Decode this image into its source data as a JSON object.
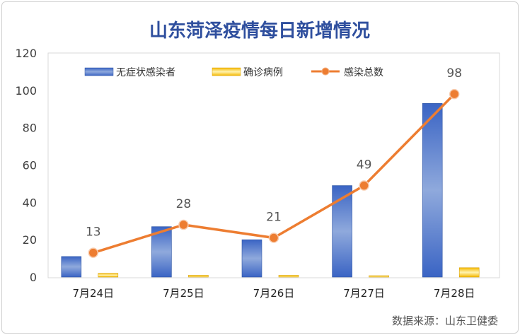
{
  "chart_data": {
    "type": "bar",
    "title": "山东菏泽疫情每日新增情况",
    "categories": [
      "7月24日",
      "7月25日",
      "7月26日",
      "7月27日",
      "7月28日"
    ],
    "ylim": [
      0,
      120
    ],
    "yticks": [
      0,
      20,
      40,
      60,
      80,
      100,
      120
    ],
    "grid": false,
    "legend": "top",
    "series": [
      {
        "name": "无症状感染者",
        "type": "bar",
        "color": "#4472c4",
        "values": [
          11,
          27,
          20,
          49,
          93
        ]
      },
      {
        "name": "确诊病例",
        "type": "bar",
        "color": "#ffc000",
        "values": [
          2,
          1,
          1,
          0,
          5
        ]
      },
      {
        "name": "感染总数",
        "type": "line",
        "color": "#ed7d31",
        "values": [
          13,
          28,
          21,
          49,
          98
        ],
        "data_labels": [
          "13",
          "28",
          "21",
          "49",
          "98"
        ]
      }
    ],
    "source": "数据来源：山东卫健委"
  }
}
